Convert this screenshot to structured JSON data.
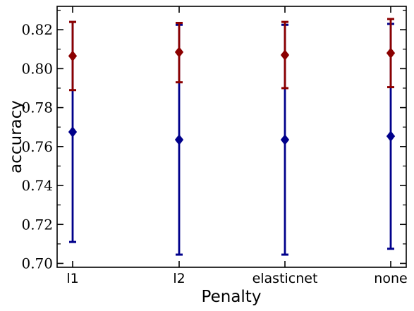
{
  "chart_data": {
    "type": "scatter",
    "xlabel": "Penalty",
    "ylabel": "accuracy",
    "categories": [
      "l1",
      "l2",
      "elasticnet",
      "none"
    ],
    "ylim": [
      0.698,
      0.832
    ],
    "yticks": [
      "0.70",
      "0.72",
      "0.74",
      "0.76",
      "0.78",
      "0.80",
      "0.82"
    ],
    "grid": false,
    "series": [
      {
        "color": "#00008b",
        "marker": "diamond",
        "values": [
          0.7675,
          0.7635,
          0.7635,
          0.7653
        ],
        "err_low": [
          0.711,
          0.7045,
          0.7045,
          0.7075
        ],
        "err_high": [
          0.824,
          0.8225,
          0.8225,
          0.823
        ]
      },
      {
        "color": "#8b0000",
        "marker": "diamond",
        "values": [
          0.8065,
          0.8085,
          0.807,
          0.808
        ],
        "err_low": [
          0.789,
          0.793,
          0.79,
          0.7905
        ],
        "err_high": [
          0.824,
          0.8235,
          0.824,
          0.8255
        ]
      }
    ]
  }
}
